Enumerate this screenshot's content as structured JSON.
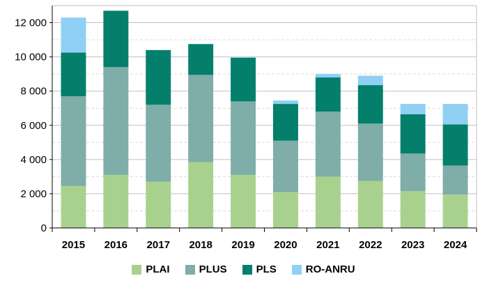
{
  "chart_data": {
    "type": "bar",
    "stacked": true,
    "categories": [
      "2015",
      "2016",
      "2017",
      "2018",
      "2019",
      "2020",
      "2021",
      "2022",
      "2023",
      "2024"
    ],
    "series": [
      {
        "name": "PLAI",
        "color": "#a9d18e",
        "values": [
          2450,
          3100,
          2700,
          3850,
          3100,
          2100,
          3000,
          2750,
          2150,
          1950
        ]
      },
      {
        "name": "PLUS",
        "color": "#7fada8",
        "values": [
          5250,
          6300,
          4500,
          5100,
          4300,
          3000,
          3800,
          3350,
          2200,
          1700
        ]
      },
      {
        "name": "PLS",
        "color": "#037f6c",
        "values": [
          2550,
          3300,
          3200,
          1800,
          2550,
          2150,
          2000,
          2250,
          2300,
          2400
        ]
      },
      {
        "name": "RO-ANRU",
        "color": "#8fd0f4",
        "values": [
          2050,
          0,
          0,
          0,
          50,
          200,
          200,
          550,
          600,
          1200
        ]
      }
    ],
    "yticks": [
      "0",
      "2 000",
      "4 000",
      "6 000",
      "8 000",
      "10 000",
      "12 000"
    ],
    "ylim": [
      0,
      13000
    ],
    "grid": true,
    "legend_position": "bottom"
  }
}
